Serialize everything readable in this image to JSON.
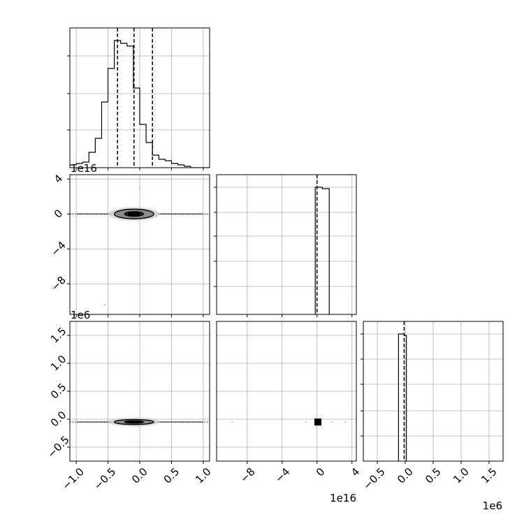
{
  "chart_data": {
    "type": "corner",
    "grid": true,
    "axes": {
      "p0": {
        "lim": [
          -1.1,
          1.1
        ],
        "ticks": [
          -1.0,
          -0.5,
          0.0,
          0.5,
          1.0
        ],
        "labels": [
          "−1.0",
          "−0.5",
          "0.0",
          "0.5",
          "1.0"
        ],
        "offset": ""
      },
      "p1": {
        "lim": [
          -11.5,
          4.5
        ],
        "ticks": [
          -8,
          -4,
          0,
          4
        ],
        "labels": [
          "−8",
          "−4",
          "0",
          "4"
        ],
        "offset": "1e16"
      },
      "p2": {
        "lim": [
          -0.75,
          1.75
        ],
        "ticks": [
          -0.5,
          0.0,
          0.5,
          1.0,
          1.5
        ],
        "labels": [
          "−0.5",
          "0.0",
          "0.5",
          "1.0",
          "1.5"
        ],
        "offset": "1e6"
      }
    },
    "panels": [
      {
        "name": "hist-p0",
        "kind": "hist",
        "row": 0,
        "col": 0,
        "x": "p0",
        "bin_edges": [
          -1.1,
          -1.0,
          -0.9,
          -0.8,
          -0.7,
          -0.6,
          -0.5,
          -0.4,
          -0.3,
          -0.2,
          -0.1,
          0.0,
          0.1,
          0.2,
          0.3,
          0.4,
          0.5,
          0.6,
          0.7,
          0.8,
          0.9,
          1.0,
          1.1
        ],
        "counts": [
          0.02,
          0.03,
          0.04,
          0.11,
          0.21,
          0.47,
          0.71,
          0.91,
          0.89,
          0.87,
          0.57,
          0.31,
          0.18,
          0.09,
          0.06,
          0.05,
          0.03,
          0.02,
          0.01,
          0,
          0,
          0
        ],
        "ymax": 1.0,
        "yticks": [
          0.27,
          0.53,
          0.8
        ],
        "quantiles": [
          -0.35,
          -0.09,
          0.2
        ]
      },
      {
        "name": "hist-p1",
        "kind": "hist",
        "row": 1,
        "col": 1,
        "x": "p1",
        "bin_edges": [
          -0.2,
          0.6,
          1.4
        ],
        "counts": [
          0.91,
          0.9
        ],
        "ymax": 1.0,
        "yticks": [
          0.2,
          0.38,
          0.56,
          0.73,
          0.91
        ],
        "quantiles": [
          0.0
        ]
      },
      {
        "name": "hist-p2",
        "kind": "hist",
        "row": 2,
        "col": 2,
        "x": "p2",
        "bin_edges": [
          -0.12,
          -0.02,
          0.02
        ],
        "counts": [
          0.91,
          0.9
        ],
        "ymax": 1.0,
        "yticks": [
          0.18,
          0.36,
          0.55,
          0.73,
          0.91
        ],
        "quantiles": [
          -0.02
        ]
      },
      {
        "name": "contour-p1-vs-p0",
        "kind": "contour",
        "row": 1,
        "col": 0,
        "x": "p0",
        "y": "p1",
        "center": [
          -0.09,
          0.0
        ],
        "outer_halfwidth": [
          0.31,
          0.55
        ],
        "inner_halfwidth": [
          0.15,
          0.27
        ],
        "scatter_band": [
          -1.1,
          1.1
        ],
        "outliers": [
          [
            -0.55,
            -10.4
          ],
          [
            0.0,
            3.1
          ]
        ]
      },
      {
        "name": "contour-p2-vs-p0",
        "kind": "contour",
        "row": 2,
        "col": 0,
        "x": "p0",
        "y": "p2",
        "center": [
          -0.09,
          -0.05
        ],
        "outer_halfwidth": [
          0.31,
          0.045
        ],
        "inner_halfwidth": [
          0.15,
          0.022
        ],
        "scatter_band": [
          -1.1,
          1.1
        ],
        "outliers": []
      },
      {
        "name": "contour-p2-vs-p1",
        "kind": "point",
        "row": 2,
        "col": 1,
        "x": "p1",
        "y": "p2",
        "center": [
          0.1,
          -0.05
        ],
        "outliers": [
          [
            -9.7,
            0.0
          ],
          [
            -1.3,
            0.0
          ],
          [
            1.7,
            0.0
          ],
          [
            3.2,
            0.0
          ]
        ]
      }
    ]
  }
}
